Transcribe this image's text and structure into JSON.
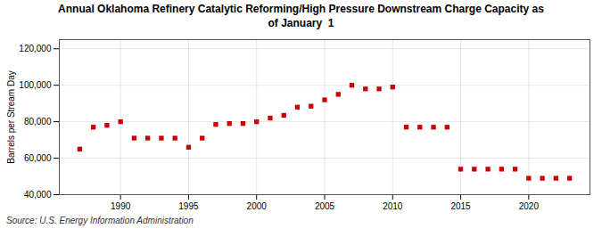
{
  "chart_data": {
    "type": "scatter",
    "title": "Annual Oklahoma Refinery Catalytic Reforming/High Pressure Downstream Charge Capacity as\nof January  1",
    "y_label": "Barrels per Stream Day",
    "annotations": [
      "Source: U.S. Energy Information Administration"
    ],
    "x": [
      1987,
      1988,
      1989,
      1990,
      1991,
      1992,
      1993,
      1994,
      1995,
      1996,
      1997,
      1998,
      1999,
      2000,
      2001,
      2002,
      2003,
      2004,
      2005,
      2006,
      2007,
      2008,
      2009,
      2010,
      2011,
      2012,
      2013,
      2014,
      2015,
      2016,
      2017,
      2018,
      2019,
      2020,
      2021,
      2022,
      2023
    ],
    "values": [
      65000,
      77000,
      78000,
      80000,
      71000,
      71000,
      71000,
      71000,
      66000,
      71000,
      78500,
      79000,
      79000,
      80000,
      82000,
      83500,
      88000,
      88500,
      92000,
      95000,
      100000,
      98000,
      98000,
      99000,
      77000,
      77000,
      77000,
      77000,
      54000,
      54000,
      54000,
      54000,
      54000,
      49000,
      49000,
      49000,
      49000
    ],
    "color": "#cc0000",
    "marker": "square",
    "xlim": [
      1985.5,
      2024.5
    ],
    "xticks": [
      1990,
      1995,
      2000,
      2005,
      2010,
      2015,
      2020
    ],
    "ylim": [
      40000,
      125000
    ],
    "yticks": [
      {
        "value": 40000,
        "label": "40,000"
      },
      {
        "value": 60000,
        "label": "60,000"
      },
      {
        "value": 80000,
        "label": "80,000"
      },
      {
        "value": 100000,
        "label": "100,000"
      },
      {
        "value": 120000,
        "label": "120,000"
      }
    ],
    "grid": true
  }
}
